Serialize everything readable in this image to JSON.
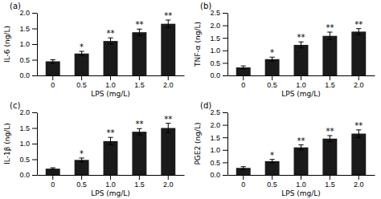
{
  "chart_data": [
    {
      "type": "bar",
      "title": "(a)",
      "xlabel": "LPS (mg/L)",
      "ylabel": "IL-6 (ng/L)",
      "categories": [
        "0",
        "0.5",
        "1.0",
        "1.5",
        "2.0"
      ],
      "values": [
        0.45,
        0.7,
        1.1,
        1.38,
        1.65
      ],
      "errors": [
        0.05,
        0.07,
        0.1,
        0.1,
        0.12
      ],
      "annotations": [
        null,
        "*",
        "**",
        "**",
        "**"
      ],
      "color": "#1a1a1a",
      "grid": false,
      "ylim": [
        0,
        2.0
      ],
      "yticks": [
        {
          "value": 0,
          "label": "0.0"
        },
        0.5,
        {
          "value": 1.0,
          "label": "1.0"
        },
        1.5,
        {
          "value": 2.0,
          "label": "2.0"
        }
      ]
    },
    {
      "type": "bar",
      "title": "(b)",
      "xlabel": "LPS (mg/L)",
      "ylabel": "TNF-α (ng/L)",
      "categories": [
        "0",
        "0.5",
        "1.0",
        "1.5",
        "2.0"
      ],
      "values": [
        0.32,
        0.65,
        1.22,
        1.58,
        1.75
      ],
      "errors": [
        0.06,
        0.08,
        0.12,
        0.15,
        0.12
      ],
      "annotations": [
        null,
        "*",
        "**",
        "**",
        "**"
      ],
      "color": "#1a1a1a",
      "grid": false,
      "ylim": [
        0,
        2.5
      ],
      "yticks": [
        {
          "value": 0,
          "label": "0.0"
        },
        0.5,
        {
          "value": 1.0,
          "label": "1.0"
        },
        1.5,
        {
          "value": 2.0,
          "label": "2.0"
        },
        2.5
      ]
    },
    {
      "type": "bar",
      "title": "(c)",
      "xlabel": "LPS (mg/L)",
      "ylabel": "IL-1β (ng/L)",
      "categories": [
        "0",
        "0.5",
        "1.0",
        "1.5",
        "2.0"
      ],
      "values": [
        0.2,
        0.48,
        1.08,
        1.38,
        1.5
      ],
      "errors": [
        0.03,
        0.06,
        0.12,
        0.1,
        0.15
      ],
      "annotations": [
        null,
        "*",
        "**",
        "**",
        "**"
      ],
      "color": "#1a1a1a",
      "grid": false,
      "ylim": [
        0,
        2.0
      ],
      "yticks": [
        {
          "value": 0,
          "label": "0.0"
        },
        0.5,
        {
          "value": 1.0,
          "label": "1.0"
        },
        1.5,
        {
          "value": 2.0,
          "label": "2.0"
        }
      ]
    },
    {
      "type": "bar",
      "title": "(d)",
      "xlabel": "LPS (mg/L)",
      "ylabel": "PGE2 (ng/L)",
      "categories": [
        "0",
        "0.5",
        "1.0",
        "1.5",
        "2.0"
      ],
      "values": [
        0.28,
        0.55,
        1.1,
        1.45,
        1.65
      ],
      "errors": [
        0.05,
        0.07,
        0.1,
        0.12,
        0.15
      ],
      "annotations": [
        null,
        "*",
        "**",
        "**",
        "**"
      ],
      "color": "#1a1a1a",
      "grid": false,
      "ylim": [
        0,
        2.5
      ],
      "yticks": [
        {
          "value": 0,
          "label": "0.0"
        },
        0.5,
        {
          "value": 1.0,
          "label": "1.0"
        },
        1.5,
        {
          "value": 2.0,
          "label": "2.0"
        },
        2.5
      ]
    }
  ]
}
